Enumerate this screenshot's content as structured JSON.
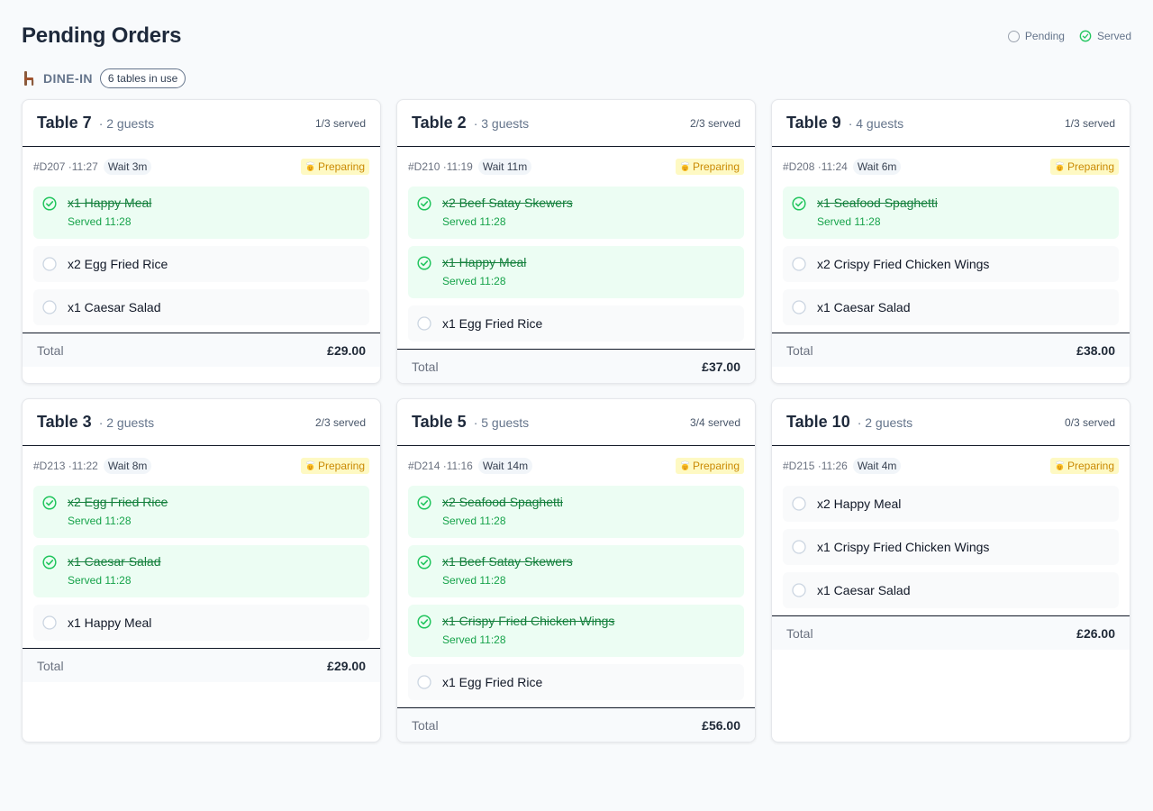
{
  "header": {
    "title": "Pending Orders"
  },
  "legend": {
    "pending_label": "Pending",
    "served_label": "Served"
  },
  "section": {
    "label": "DINE-IN",
    "badge": "6 tables in use"
  },
  "colors": {
    "served": "#22c55e",
    "pending": "#9ca3af",
    "preparing": "#ca8a04"
  },
  "total_label": "Total",
  "served_prefix": "Served",
  "tables": [
    {
      "name": "Table 7",
      "guests": "· 2 guests",
      "served": "1/3 served",
      "order_id": "#D207 ·11:27",
      "wait": "Wait 3m",
      "status": "Preparing",
      "items": [
        {
          "text": "x1 Happy Meal",
          "served": true,
          "served_at": "Served 11:28"
        },
        {
          "text": "x2 Egg Fried Rice",
          "served": false
        },
        {
          "text": "x1 Caesar Salad",
          "served": false
        }
      ],
      "total": "£29.00"
    },
    {
      "name": "Table 2",
      "guests": "· 3 guests",
      "served": "2/3 served",
      "order_id": "#D210 ·11:19",
      "wait": "Wait 11m",
      "status": "Preparing",
      "items": [
        {
          "text": "x2 Beef Satay Skewers",
          "served": true,
          "served_at": "Served 11:28"
        },
        {
          "text": "x1 Happy Meal",
          "served": true,
          "served_at": "Served 11:28"
        },
        {
          "text": "x1 Egg Fried Rice",
          "served": false
        }
      ],
      "total": "£37.00"
    },
    {
      "name": "Table 9",
      "guests": "· 4 guests",
      "served": "1/3 served",
      "order_id": "#D208 ·11:24",
      "wait": "Wait 6m",
      "status": "Preparing",
      "items": [
        {
          "text": "x1 Seafood Spaghetti",
          "served": true,
          "served_at": "Served 11:28"
        },
        {
          "text": "x2 Crispy Fried Chicken Wings",
          "served": false
        },
        {
          "text": "x1 Caesar Salad",
          "served": false
        }
      ],
      "total": "£38.00"
    },
    {
      "name": "Table 3",
      "guests": "· 2 guests",
      "served": "2/3 served",
      "order_id": "#D213 ·11:22",
      "wait": "Wait 8m",
      "status": "Preparing",
      "items": [
        {
          "text": "x2 Egg Fried Rice",
          "served": true,
          "served_at": "Served 11:28"
        },
        {
          "text": "x1 Caesar Salad",
          "served": true,
          "served_at": "Served 11:28"
        },
        {
          "text": "x1 Happy Meal",
          "served": false
        }
      ],
      "total": "£29.00"
    },
    {
      "name": "Table 5",
      "guests": "· 5 guests",
      "served": "3/4 served",
      "order_id": "#D214 ·11:16",
      "wait": "Wait 14m",
      "status": "Preparing",
      "items": [
        {
          "text": "x2 Seafood Spaghetti",
          "served": true,
          "served_at": "Served 11:28"
        },
        {
          "text": "x1 Beef Satay Skewers",
          "served": true,
          "served_at": "Served 11:28"
        },
        {
          "text": "x1 Crispy Fried Chicken Wings",
          "served": true,
          "served_at": "Served 11:28"
        },
        {
          "text": "x1 Egg Fried Rice",
          "served": false
        }
      ],
      "total": "£56.00"
    },
    {
      "name": "Table 10",
      "guests": "· 2 guests",
      "served": "0/3 served",
      "order_id": "#D215 ·11:26",
      "wait": "Wait 4m",
      "status": "Preparing",
      "items": [
        {
          "text": "x2 Happy Meal",
          "served": false
        },
        {
          "text": "x1 Crispy Fried Chicken Wings",
          "served": false
        },
        {
          "text": "x1 Caesar Salad",
          "served": false
        }
      ],
      "total": "£26.00"
    }
  ]
}
